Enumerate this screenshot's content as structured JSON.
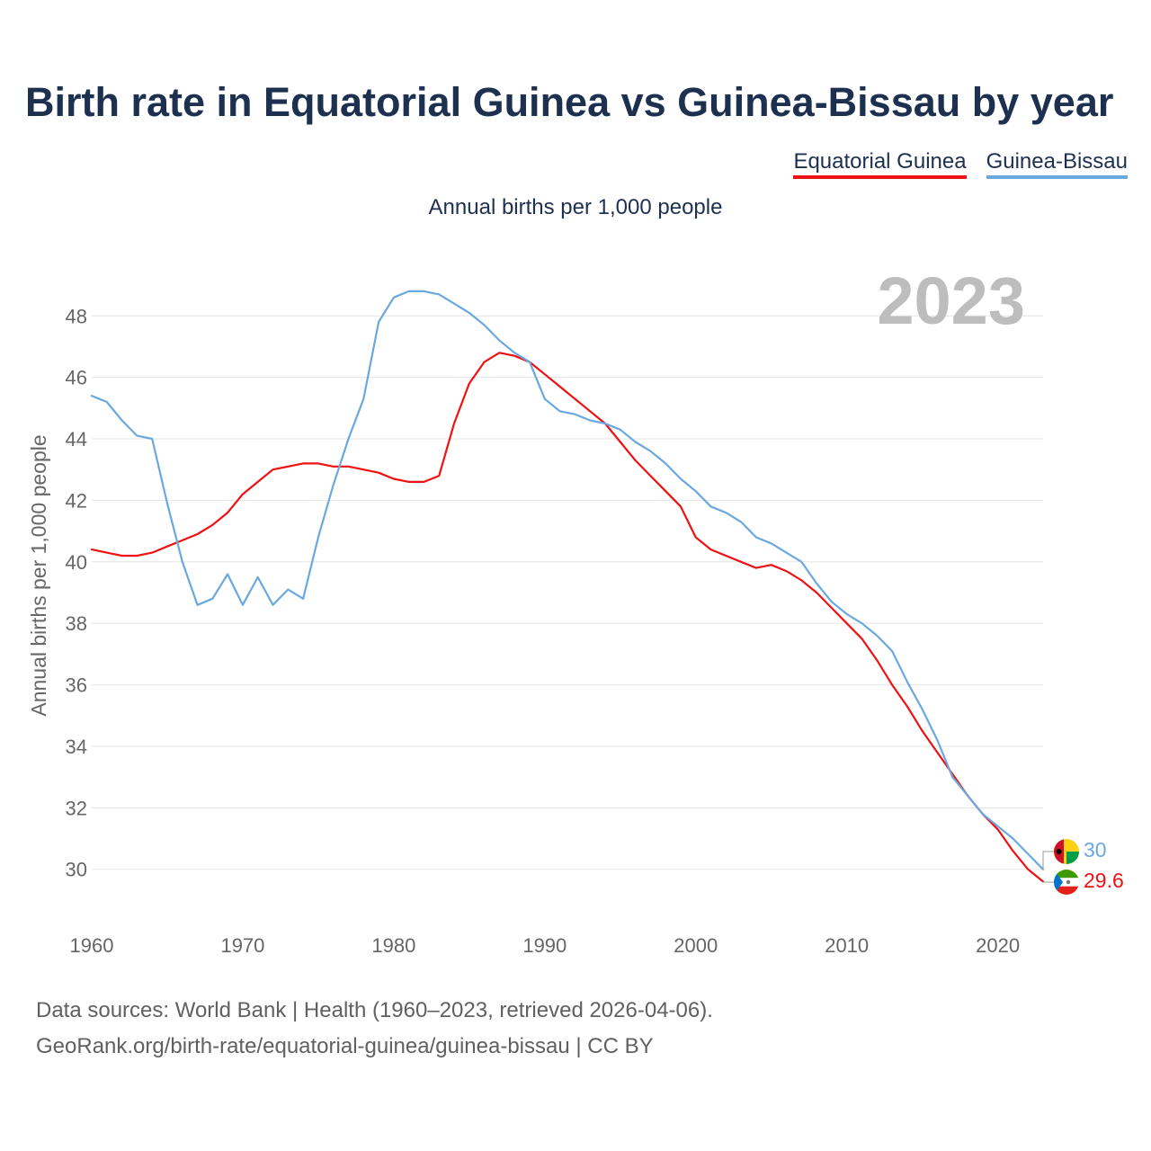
{
  "title": "Birth rate in Equatorial Guinea vs Guinea-Bissau by year",
  "subtitle": "Annual births per 1,000 people",
  "year_label": "2023",
  "footer": {
    "line1": "Data sources: World Bank | Health (1960–2023, retrieved 2026-04-06).",
    "line2": "GeoRank.org/birth-rate/equatorial-guinea/guinea-bissau | CC BY"
  },
  "colors": {
    "equatorial_guinea": "#ee1111",
    "guinea_bissau": "#6aa8e0",
    "grid": "#e6e6e6",
    "tick": "#666666",
    "year_watermark": "#bdbdbd"
  },
  "chart_data": {
    "type": "line",
    "title": "Birth rate in Equatorial Guinea vs Guinea-Bissau by year",
    "subtitle": "Annual births per 1,000 people",
    "xlabel": "",
    "ylabel": "Annual births per 1,000 people",
    "xlim": [
      1960,
      2023
    ],
    "ylim": [
      28.5,
      49.5
    ],
    "xticks": [
      1960,
      1970,
      1980,
      1990,
      2000,
      2010,
      2020
    ],
    "yticks": [
      30,
      32,
      34,
      36,
      38,
      40,
      42,
      44,
      46,
      48
    ],
    "grid": true,
    "legend": "top-right",
    "x": [
      1960,
      1961,
      1962,
      1963,
      1964,
      1965,
      1966,
      1967,
      1968,
      1969,
      1970,
      1971,
      1972,
      1973,
      1974,
      1975,
      1976,
      1977,
      1978,
      1979,
      1980,
      1981,
      1982,
      1983,
      1984,
      1985,
      1986,
      1987,
      1988,
      1989,
      1990,
      1991,
      1992,
      1993,
      1994,
      1995,
      1996,
      1997,
      1998,
      1999,
      2000,
      2001,
      2002,
      2003,
      2004,
      2005,
      2006,
      2007,
      2008,
      2009,
      2010,
      2011,
      2012,
      2013,
      2014,
      2015,
      2016,
      2017,
      2018,
      2019,
      2020,
      2021,
      2022,
      2023
    ],
    "series": [
      {
        "name": "Equatorial Guinea",
        "end_label": "29.6",
        "values": [
          40.4,
          40.3,
          40.2,
          40.2,
          40.3,
          40.5,
          40.7,
          40.9,
          41.2,
          41.6,
          42.2,
          42.6,
          43.0,
          43.1,
          43.2,
          43.2,
          43.1,
          43.1,
          43.0,
          42.9,
          42.7,
          42.6,
          42.6,
          42.8,
          44.5,
          45.8,
          46.5,
          46.8,
          46.7,
          46.5,
          46.1,
          45.7,
          45.3,
          44.9,
          44.5,
          43.9,
          43.3,
          42.8,
          42.3,
          41.8,
          40.8,
          40.4,
          40.2,
          40.0,
          39.8,
          39.9,
          39.7,
          39.4,
          39.0,
          38.5,
          38.0,
          37.5,
          36.8,
          36.0,
          35.3,
          34.5,
          33.8,
          33.1,
          32.4,
          31.8,
          31.3,
          30.6,
          30.0,
          29.6
        ]
      },
      {
        "name": "Guinea-Bissau",
        "end_label": "30",
        "values": [
          45.4,
          45.2,
          44.6,
          44.1,
          44.0,
          41.9,
          40.0,
          38.6,
          38.8,
          39.6,
          38.6,
          39.5,
          38.6,
          39.1,
          38.8,
          40.8,
          42.5,
          44.0,
          45.3,
          47.8,
          48.6,
          48.8,
          48.8,
          48.7,
          48.4,
          48.1,
          47.7,
          47.2,
          46.8,
          46.5,
          45.3,
          44.9,
          44.8,
          44.6,
          44.5,
          44.3,
          43.9,
          43.6,
          43.2,
          42.7,
          42.3,
          41.8,
          41.6,
          41.3,
          40.8,
          40.6,
          40.3,
          40.0,
          39.3,
          38.7,
          38.3,
          38.0,
          37.6,
          37.1,
          36.1,
          35.2,
          34.2,
          33.0,
          32.4,
          31.8,
          31.4,
          31.0,
          30.5,
          30.0
        ]
      }
    ]
  }
}
